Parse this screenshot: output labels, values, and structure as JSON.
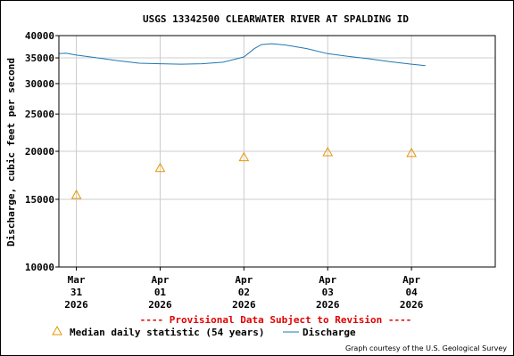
{
  "chart_data": {
    "type": "line",
    "title": "USGS 13342500 CLEARWATER RIVER AT SPALDING ID",
    "ylabel": "Discharge, cubic feet per second",
    "xlabel": "",
    "y_scale": "log",
    "ylim": [
      10000,
      40000
    ],
    "y_ticks": [
      10000,
      15000,
      20000,
      25000,
      30000,
      35000,
      40000
    ],
    "y_tick_labels": [
      "10000",
      "15000",
      "20000",
      "25000",
      "30000",
      "35000",
      "40000"
    ],
    "xlim": [
      "2026-03-30T19:00",
      "2026-04-05T00:00"
    ],
    "x_ticks": [
      {
        "date": "2026-03-31T00:00",
        "line1": "Mar",
        "line2": "31",
        "line3": "2026"
      },
      {
        "date": "2026-04-01T00:00",
        "line1": "Apr",
        "line2": "01",
        "line3": "2026"
      },
      {
        "date": "2026-04-02T00:00",
        "line1": "Apr",
        "line2": "02",
        "line3": "2026"
      },
      {
        "date": "2026-04-03T00:00",
        "line1": "Apr",
        "line2": "03",
        "line3": "2026"
      },
      {
        "date": "2026-04-04T00:00",
        "line1": "Apr",
        "line2": "04",
        "line3": "2026"
      }
    ],
    "grid": true,
    "series": [
      {
        "name": "Discharge",
        "color": "#1f77b4",
        "marker": "line",
        "points": [
          [
            "2026-03-30T19:00",
            35900
          ],
          [
            "2026-03-30T21:00",
            36000
          ],
          [
            "2026-03-31T00:00",
            35600
          ],
          [
            "2026-03-31T06:00",
            35000
          ],
          [
            "2026-03-31T12:00",
            34400
          ],
          [
            "2026-03-31T18:00",
            33900
          ],
          [
            "2026-04-01T00:00",
            33800
          ],
          [
            "2026-04-01T06:00",
            33700
          ],
          [
            "2026-04-01T12:00",
            33800
          ],
          [
            "2026-04-01T18:00",
            34100
          ],
          [
            "2026-04-02T00:00",
            35200
          ],
          [
            "2026-04-02T03:00",
            37000
          ],
          [
            "2026-04-02T05:00",
            37900
          ],
          [
            "2026-04-02T08:00",
            38100
          ],
          [
            "2026-04-02T12:00",
            37800
          ],
          [
            "2026-04-02T18:00",
            37000
          ],
          [
            "2026-04-03T00:00",
            35900
          ],
          [
            "2026-04-03T06:00",
            35300
          ],
          [
            "2026-04-03T12:00",
            34800
          ],
          [
            "2026-04-03T18:00",
            34200
          ],
          [
            "2026-04-04T00:00",
            33700
          ],
          [
            "2026-04-04T04:00",
            33400
          ]
        ]
      },
      {
        "name": "Median daily statistic (54 years)",
        "color": "#e69500",
        "marker": "triangle",
        "points": [
          [
            "2026-03-31T00:00",
            15400
          ],
          [
            "2026-04-01T00:00",
            18100
          ],
          [
            "2026-04-02T00:00",
            19300
          ],
          [
            "2026-04-03T00:00",
            19900
          ],
          [
            "2026-04-04T00:00",
            19800
          ]
        ]
      }
    ],
    "legend_placement": "bottom"
  },
  "notice": "---- Provisional Data Subject to Revision ----",
  "legend": {
    "median_label": "Median daily statistic (54 years)",
    "discharge_label": "Discharge"
  },
  "credit": "Graph courtesy of the U.S. Geological Survey",
  "colors": {
    "discharge": "#1f77b4",
    "median": "#e69500",
    "notice": "#e00000",
    "grid": "#cccccc"
  }
}
